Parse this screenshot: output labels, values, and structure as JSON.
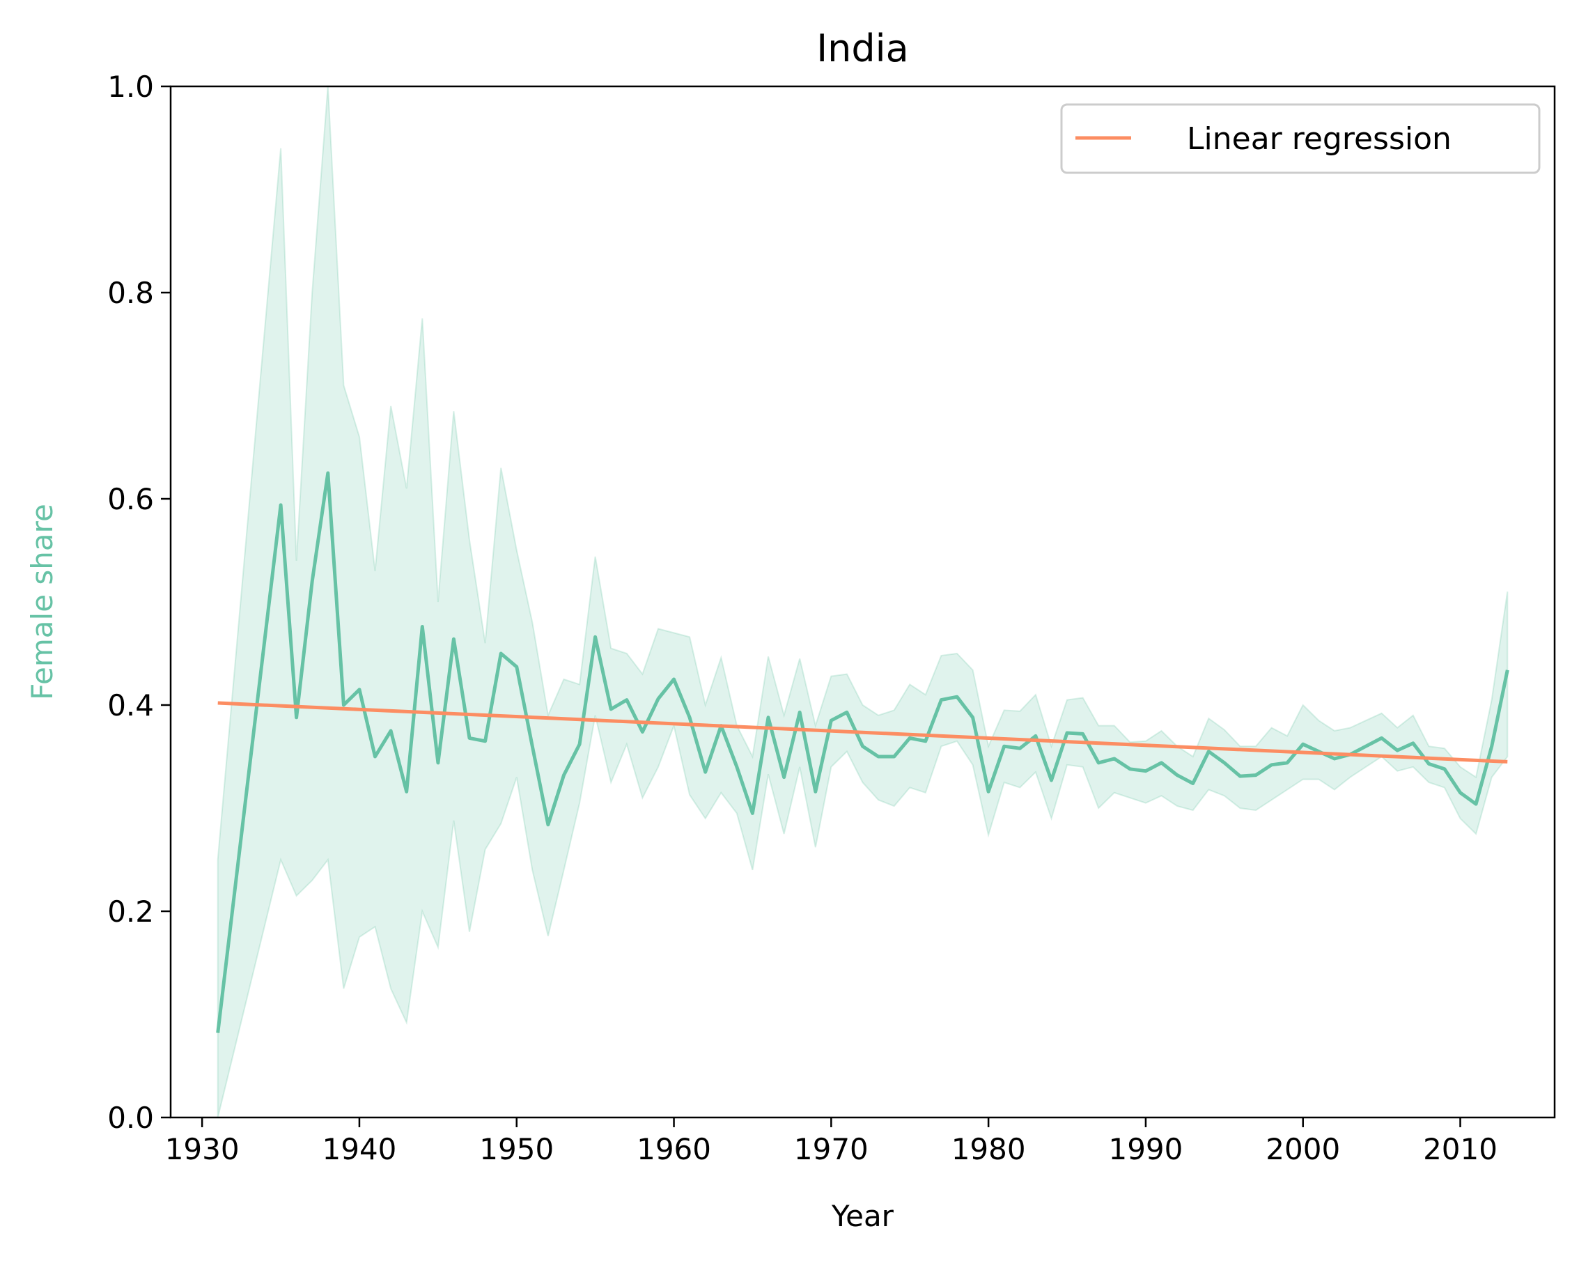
{
  "chart_data": {
    "type": "line",
    "title": "India",
    "xlabel": "Year",
    "ylabel": "Female share",
    "xlim": [
      1928,
      2016
    ],
    "ylim": [
      0.0,
      1.0
    ],
    "x_ticks": [
      1930,
      1940,
      1950,
      1960,
      1970,
      1980,
      1990,
      2000,
      2010
    ],
    "y_ticks": [
      0.0,
      0.2,
      0.4,
      0.6,
      0.8,
      1.0
    ],
    "y_tick_labels": [
      "0.0",
      "0.2",
      "0.4",
      "0.6",
      "0.8",
      "1.0"
    ],
    "grid": false,
    "legend": {
      "placement": "top-right",
      "entries": [
        "Linear regression"
      ]
    },
    "colors": {
      "series": "#66c2a5",
      "band": "#66c2a5",
      "regression": "#fc8d62"
    },
    "series": [
      {
        "role": "main",
        "x": [
          1931,
          1935,
          1936,
          1937,
          1938,
          1939,
          1940,
          1941,
          1942,
          1943,
          1944,
          1945,
          1946,
          1947,
          1948,
          1949,
          1950,
          1951,
          1952,
          1953,
          1954,
          1955,
          1956,
          1957,
          1958,
          1959,
          1960,
          1961,
          1962,
          1963,
          1964,
          1965,
          1966,
          1967,
          1968,
          1969,
          1970,
          1971,
          1972,
          1973,
          1974,
          1975,
          1976,
          1977,
          1978,
          1979,
          1980,
          1981,
          1982,
          1983,
          1984,
          1985,
          1986,
          1987,
          1988,
          1989,
          1990,
          1991,
          1992,
          1993,
          1994,
          1995,
          1996,
          1997,
          1998,
          1999,
          2000,
          2001,
          2002,
          2003,
          2004,
          2005,
          2006,
          2007,
          2008,
          2009,
          2010,
          2011,
          2012,
          2013
        ],
        "values": [
          0.082,
          0.594,
          0.388,
          0.52,
          0.625,
          0.4,
          0.415,
          0.35,
          0.375,
          0.316,
          0.476,
          0.344,
          0.464,
          0.368,
          0.365,
          0.45,
          0.437,
          0.36,
          0.284,
          0.332,
          0.362,
          0.466,
          0.396,
          0.405,
          0.374,
          0.406,
          0.425,
          0.388,
          0.335,
          0.38,
          0.34,
          0.295,
          0.388,
          0.33,
          0.393,
          0.316,
          0.385,
          0.393,
          0.36,
          0.35,
          0.35,
          0.368,
          0.365,
          0.405,
          0.408,
          0.388,
          0.316,
          0.36,
          0.358,
          0.37,
          0.327,
          0.373,
          0.372,
          0.344,
          0.348,
          0.338,
          0.336,
          0.344,
          0.332,
          0.324,
          0.355,
          0.344,
          0.331,
          0.332,
          0.342,
          0.344,
          0.362,
          0.355,
          0.348,
          0.352,
          0.36,
          0.368,
          0.356,
          0.363,
          0.343,
          0.338,
          0.315,
          0.304,
          0.36,
          0.434
        ],
        "upper": [
          0.25,
          0.94,
          0.54,
          0.8,
          1.0,
          0.71,
          0.66,
          0.53,
          0.69,
          0.61,
          0.775,
          0.5,
          0.685,
          0.56,
          0.46,
          0.63,
          0.55,
          0.48,
          0.39,
          0.425,
          0.42,
          0.544,
          0.455,
          0.45,
          0.43,
          0.474,
          0.47,
          0.466,
          0.4,
          0.446,
          0.38,
          0.35,
          0.447,
          0.39,
          0.445,
          0.38,
          0.428,
          0.43,
          0.4,
          0.39,
          0.395,
          0.42,
          0.41,
          0.448,
          0.45,
          0.434,
          0.36,
          0.395,
          0.394,
          0.41,
          0.36,
          0.405,
          0.407,
          0.38,
          0.38,
          0.364,
          0.365,
          0.375,
          0.36,
          0.35,
          0.387,
          0.376,
          0.36,
          0.36,
          0.378,
          0.37,
          0.4,
          0.385,
          0.375,
          0.378,
          0.385,
          0.392,
          0.378,
          0.39,
          0.36,
          0.358,
          0.34,
          0.33,
          0.405,
          0.51
        ],
        "lower": [
          0.0,
          0.25,
          0.215,
          0.23,
          0.25,
          0.125,
          0.175,
          0.185,
          0.125,
          0.092,
          0.2,
          0.165,
          0.288,
          0.18,
          0.26,
          0.285,
          0.33,
          0.24,
          0.176,
          0.24,
          0.305,
          0.39,
          0.325,
          0.362,
          0.31,
          0.34,
          0.38,
          0.313,
          0.29,
          0.315,
          0.295,
          0.24,
          0.333,
          0.275,
          0.34,
          0.262,
          0.34,
          0.355,
          0.325,
          0.308,
          0.302,
          0.32,
          0.315,
          0.36,
          0.365,
          0.342,
          0.274,
          0.325,
          0.32,
          0.335,
          0.29,
          0.342,
          0.34,
          0.3,
          0.315,
          0.31,
          0.305,
          0.312,
          0.302,
          0.298,
          0.318,
          0.312,
          0.3,
          0.298,
          0.308,
          0.318,
          0.328,
          0.328,
          0.318,
          0.33,
          0.34,
          0.35,
          0.336,
          0.34,
          0.325,
          0.32,
          0.29,
          0.275,
          0.33,
          0.35
        ]
      },
      {
        "role": "regression",
        "name": "Linear regression",
        "x": [
          1931,
          2013
        ],
        "values": [
          0.402,
          0.345
        ]
      }
    ]
  }
}
